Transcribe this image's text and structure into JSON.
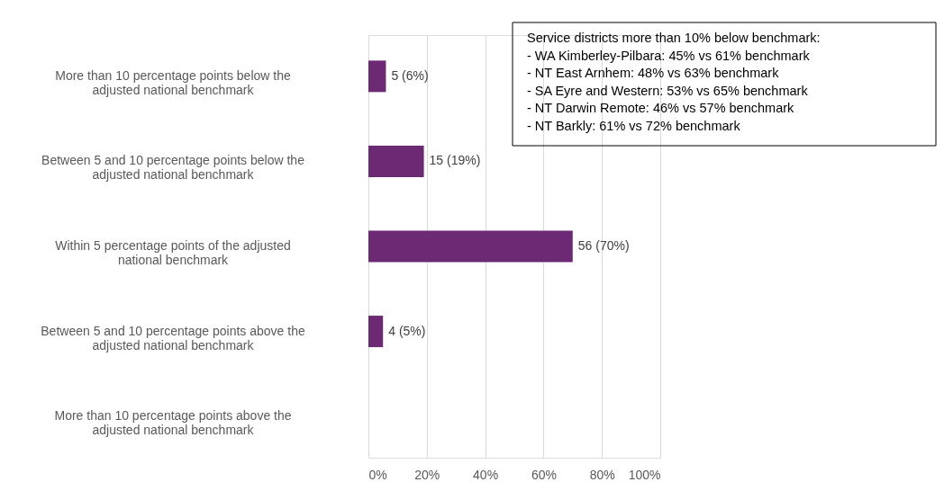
{
  "chart_data": {
    "type": "bar",
    "orientation": "horizontal",
    "categories": [
      "More than 10 percentage points below the adjusted national benchmark",
      "Between 5 and 10 percentage points below the adjusted national benchmark",
      "Within 5 percentage points of the adjusted national benchmark",
      "Between 5 and 10 percentage points above the adjusted national benchmark",
      "More than 10 percentage points above the adjusted national benchmark"
    ],
    "values": [
      6,
      19,
      70,
      5,
      null
    ],
    "value_labels": [
      "5 (6%)",
      "15 (19%)",
      "56 (70%)",
      "4 (5%)",
      null
    ],
    "color": "#6b2a73",
    "xlim": [
      0,
      100
    ],
    "xticks": [
      {
        "value": 0,
        "label": "0%"
      },
      {
        "value": 20,
        "label": "20%"
      },
      {
        "value": 40,
        "label": "40%"
      },
      {
        "value": 60,
        "label": "60%"
      },
      {
        "value": 80,
        "label": "80%"
      },
      {
        "value": 100,
        "label": "100%"
      }
    ],
    "grid": "x",
    "annotations": [
      "Service districts more than 10% below benchmark:",
      " - WA Kimberley-Pilbara: 45% vs 61% benchmark",
      " - NT East Arnhem: 48% vs 63% benchmark",
      " - SA Eyre and Western: 53% vs 65% benchmark",
      " - NT Darwin Remote: 46% vs 57% benchmark",
      " - NT Barkly: 61% vs 72% benchmark"
    ]
  }
}
